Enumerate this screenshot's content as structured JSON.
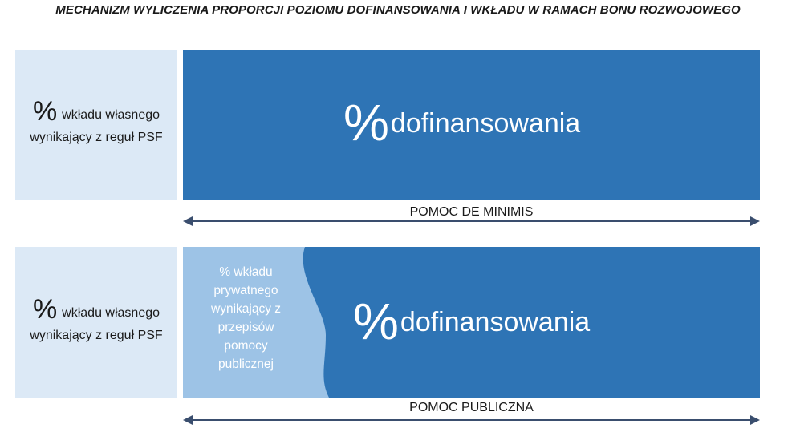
{
  "title": "MECHANIZM WYLICZENIA PROPORCJI POZIOMU DOFINANSOWANIA I WKŁADU W RAMACH BONU ROZWOJOWEGO",
  "colors": {
    "dark_blue": "#2e74b5",
    "light_blue": "#9dc3e6",
    "pale_blue": "#dce9f6",
    "arrow": "#3a4e6e"
  },
  "row1": {
    "left": {
      "percent": "%",
      "line1": "wkładu własnego",
      "line2": "wynikający z reguł PSF"
    },
    "main": {
      "percent": "%",
      "label": "dofinansowania"
    },
    "arrow_label": "POMOC DE MINIMIS"
  },
  "row2": {
    "left": {
      "percent": "%",
      "line1": "wkładu własnego",
      "line2": "wynikający z reguł PSF"
    },
    "private": [
      "% wkładu",
      "prywatnego",
      "wynikający z",
      "przepisów",
      "pomocy",
      "publicznej"
    ],
    "main": {
      "percent": "%",
      "label": "dofinansowania"
    },
    "arrow_label": "POMOC PUBLICZNA"
  }
}
